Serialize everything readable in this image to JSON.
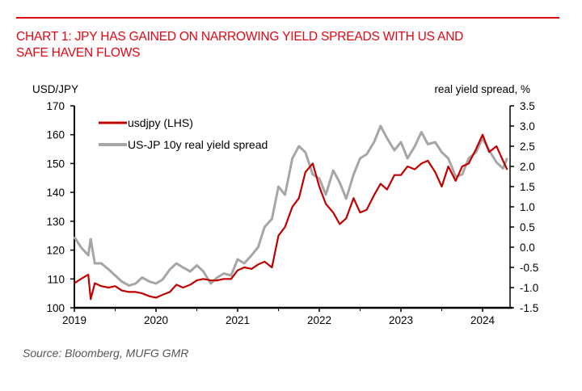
{
  "header": {
    "title_line1": "CHART 1: JPY HAS GAINED ON NARROWING YIELD SPREADS WITH US AND",
    "title_line2": "SAFE HAVEN FLOWS"
  },
  "footer": {
    "source": "Source: Bloomberg, MUFG GMR"
  },
  "colors": {
    "accent": "#e30613",
    "usdjpy": "#c00000",
    "spread": "#a6a6a6"
  },
  "chart_data": {
    "type": "line",
    "title": "CHART 1: JPY HAS GAINED ON NARROWING YIELD SPREADS WITH US AND SAFE HAVEN FLOWS",
    "xlabel": "",
    "ylabel_left": "USD/JPY",
    "ylabel_right": "real yield spread, %",
    "ylim_left": [
      100,
      170
    ],
    "ylim_right": [
      -1.5,
      3.5
    ],
    "xlim": [
      2019.0,
      2024.35
    ],
    "x_ticks": [
      "2019",
      "2020",
      "2021",
      "2022",
      "2023",
      "2024"
    ],
    "y_ticks_left": [
      "100",
      "110",
      "120",
      "130",
      "140",
      "150",
      "160",
      "170"
    ],
    "y_ticks_right": [
      "-1.5",
      "-1.0",
      "-0.5",
      "0.0",
      "0.5",
      "1.0",
      "1.5",
      "2.0",
      "2.5",
      "3.0",
      "3.5"
    ],
    "legend": {
      "position": "top-left",
      "entries": [
        "usdjpy (LHS)",
        "US-JP 10y real yield spread"
      ]
    },
    "grid": false,
    "x": [
      2019.0,
      2019.08,
      2019.17,
      2019.2,
      2019.25,
      2019.33,
      2019.42,
      2019.5,
      2019.58,
      2019.67,
      2019.75,
      2019.83,
      2019.92,
      2020.0,
      2020.08,
      2020.17,
      2020.25,
      2020.33,
      2020.42,
      2020.5,
      2020.58,
      2020.67,
      2020.75,
      2020.83,
      2020.92,
      2021.0,
      2021.08,
      2021.17,
      2021.25,
      2021.33,
      2021.42,
      2021.5,
      2021.58,
      2021.67,
      2021.75,
      2021.83,
      2021.92,
      2022.0,
      2022.08,
      2022.17,
      2022.25,
      2022.33,
      2022.42,
      2022.5,
      2022.58,
      2022.67,
      2022.75,
      2022.83,
      2022.92,
      2023.0,
      2023.08,
      2023.17,
      2023.25,
      2023.33,
      2023.42,
      2023.5,
      2023.58,
      2023.67,
      2023.75,
      2023.83,
      2023.92,
      2024.0,
      2024.08,
      2024.17,
      2024.25,
      2024.3
    ],
    "series": [
      {
        "name": "usdjpy (LHS)",
        "axis": "left",
        "values": [
          108.5,
          110,
          111.5,
          103,
          108.5,
          107.5,
          107,
          107.5,
          106,
          105.5,
          105.5,
          105,
          104,
          103.5,
          104.5,
          105.5,
          108,
          107,
          108,
          109.5,
          110,
          109.5,
          109.5,
          110,
          110,
          113,
          114,
          113.5,
          115,
          116,
          114,
          125,
          128,
          135,
          138,
          147,
          150,
          142,
          136,
          133,
          129,
          131,
          138,
          133,
          134,
          139,
          143,
          141,
          146,
          146,
          149,
          148,
          150,
          151,
          147,
          142,
          149,
          144,
          149,
          150,
          155,
          160,
          154,
          156,
          151,
          148
        ]
      },
      {
        "name": "US-JP 10y real yield spread",
        "axis": "right",
        "values": [
          0.25,
          0.0,
          -0.2,
          0.2,
          -0.4,
          -0.4,
          -0.55,
          -0.7,
          -0.85,
          -0.95,
          -0.9,
          -0.75,
          -0.85,
          -0.9,
          -0.8,
          -0.55,
          -0.4,
          -0.5,
          -0.6,
          -0.45,
          -0.6,
          -0.9,
          -0.75,
          -0.65,
          -0.7,
          -0.3,
          -0.4,
          -0.2,
          0.0,
          0.5,
          0.7,
          1.5,
          1.3,
          2.2,
          2.5,
          2.35,
          1.8,
          1.7,
          1.3,
          1.9,
          1.6,
          1.2,
          1.8,
          2.2,
          2.3,
          2.6,
          3.0,
          2.7,
          2.4,
          2.6,
          2.2,
          2.5,
          2.85,
          2.55,
          2.6,
          2.35,
          2.2,
          1.75,
          1.8,
          2.2,
          2.35,
          2.7,
          2.4,
          2.1,
          1.95,
          2.2
        ]
      }
    ]
  }
}
